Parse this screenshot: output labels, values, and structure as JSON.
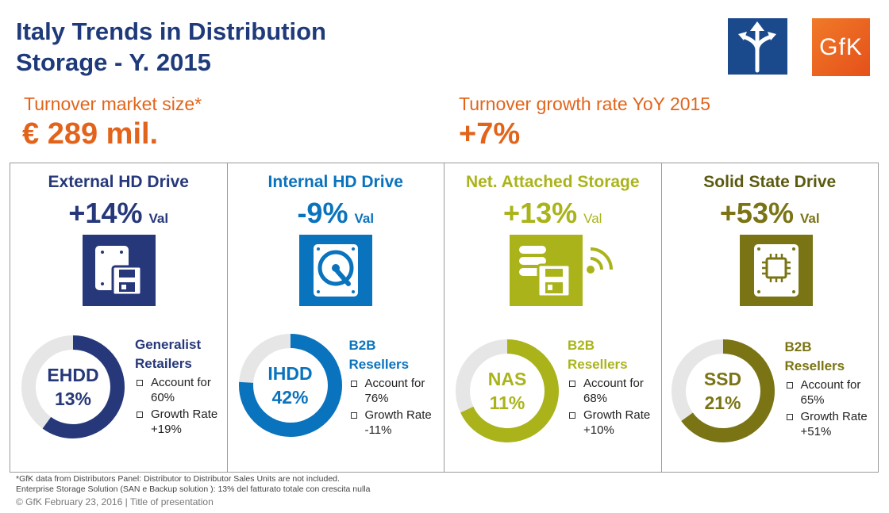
{
  "title": {
    "line1": "Italy Trends in Distribution",
    "line2": "Storage - Y. 2015"
  },
  "logos": {
    "gfk_text": "GfK",
    "arrows_icon": "split-arrows-icon"
  },
  "kpis": {
    "market_size_label": "Turnover market size*",
    "market_size_value": "€ 289 mil.",
    "growth_label": "Turnover growth rate YoY 2015",
    "growth_value": "+7%"
  },
  "colors": {
    "title": "#1f3a7a",
    "accent_orange": "#e2641b",
    "ehdd": "#26387a",
    "ihdd": "#0a73bd",
    "nas": "#aab41a",
    "ssd": "#7a7414",
    "donut_track": "#e6e6e6"
  },
  "panels": [
    {
      "title": "External HD Drive",
      "growth": "+14%",
      "val": "Val",
      "icon": "external-drive-icon",
      "donut_label": "EHDD",
      "donut_pct": "13%",
      "donut_share": 0.6,
      "channel": [
        "Generalist",
        "Retailers"
      ],
      "bullets": [
        {
          "label": "Account for",
          "value": "60%"
        },
        {
          "label": "Growth Rate",
          "value": "+19%"
        }
      ]
    },
    {
      "title": "Internal HD Drive",
      "growth": "-9%",
      "val": "Val",
      "icon": "hard-disk-icon",
      "donut_label": "IHDD",
      "donut_pct": "42%",
      "donut_share": 0.76,
      "channel": [
        "B2B",
        "Resellers"
      ],
      "bullets": [
        {
          "label": "Account for",
          "value": "76%"
        },
        {
          "label": "Growth Rate",
          "value": "-11%"
        }
      ]
    },
    {
      "title": "Net. Attached Storage",
      "growth": "+13%",
      "val": "Val",
      "icon": "nas-storage-icon",
      "donut_label": "NAS",
      "donut_pct": "11%",
      "donut_share": 0.68,
      "channel": [
        "B2B",
        "Resellers"
      ],
      "bullets": [
        {
          "label": "Account for",
          "value": "68%"
        },
        {
          "label": "Growth Rate",
          "value": "+10%"
        }
      ]
    },
    {
      "title": "Solid State Drive",
      "growth": "+53%",
      "val": "Val",
      "icon": "ssd-chip-icon",
      "donut_label": "SSD",
      "donut_pct": "21%",
      "donut_share": 0.65,
      "channel": [
        "B2B",
        "Resellers"
      ],
      "bullets": [
        {
          "label": "Account for",
          "value": "65%"
        },
        {
          "label": "Growth Rate",
          "value": "+51%"
        }
      ]
    }
  ],
  "footnotes": {
    "line1": "*GfK data from Distributors Panel: Distributor to Distributor Sales Units are not included.",
    "line2": "Enterprise Storage Solution (SAN e Backup solution ): 13% del fatturato totale con crescita nulla",
    "copyright": "© GfK February 23, 2016 | Title of presentation"
  }
}
